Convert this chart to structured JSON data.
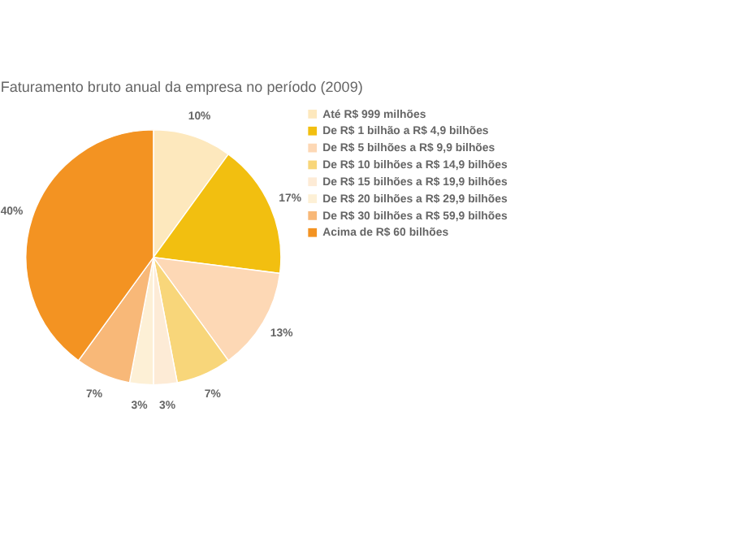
{
  "chart_data": {
    "type": "pie",
    "title": "Faturamento bruto anual da empresa no período (2009)",
    "categories": [
      "Até R$ 999 milhões",
      "De R$ 1 bilhão a R$ 4,9 bilhões",
      "De R$ 5 bilhões  a R$ 9,9 bilhões",
      "De R$ 10 bilhões a R$ 14,9 bilhões",
      "De R$ 15 bilhões a R$ 19,9 bilhões",
      "De R$ 20 bilhões a R$ 29,9 bilhões",
      "De R$ 30 bilhões a R$ 59,9 bilhões",
      "Acima de R$ 60 bilhões"
    ],
    "values": [
      10,
      17,
      13,
      7,
      3,
      3,
      7,
      40
    ],
    "colors": [
      "#fde8bd",
      "#f2bf10",
      "#fdd8b5",
      "#f8d67a",
      "#fdebd6",
      "#fdf0d6",
      "#f8b878",
      "#f39322"
    ],
    "value_labels": [
      "10%",
      "17%",
      "13%",
      "7%",
      "3%",
      "3%",
      "7%",
      "40%"
    ],
    "legend": "right"
  }
}
